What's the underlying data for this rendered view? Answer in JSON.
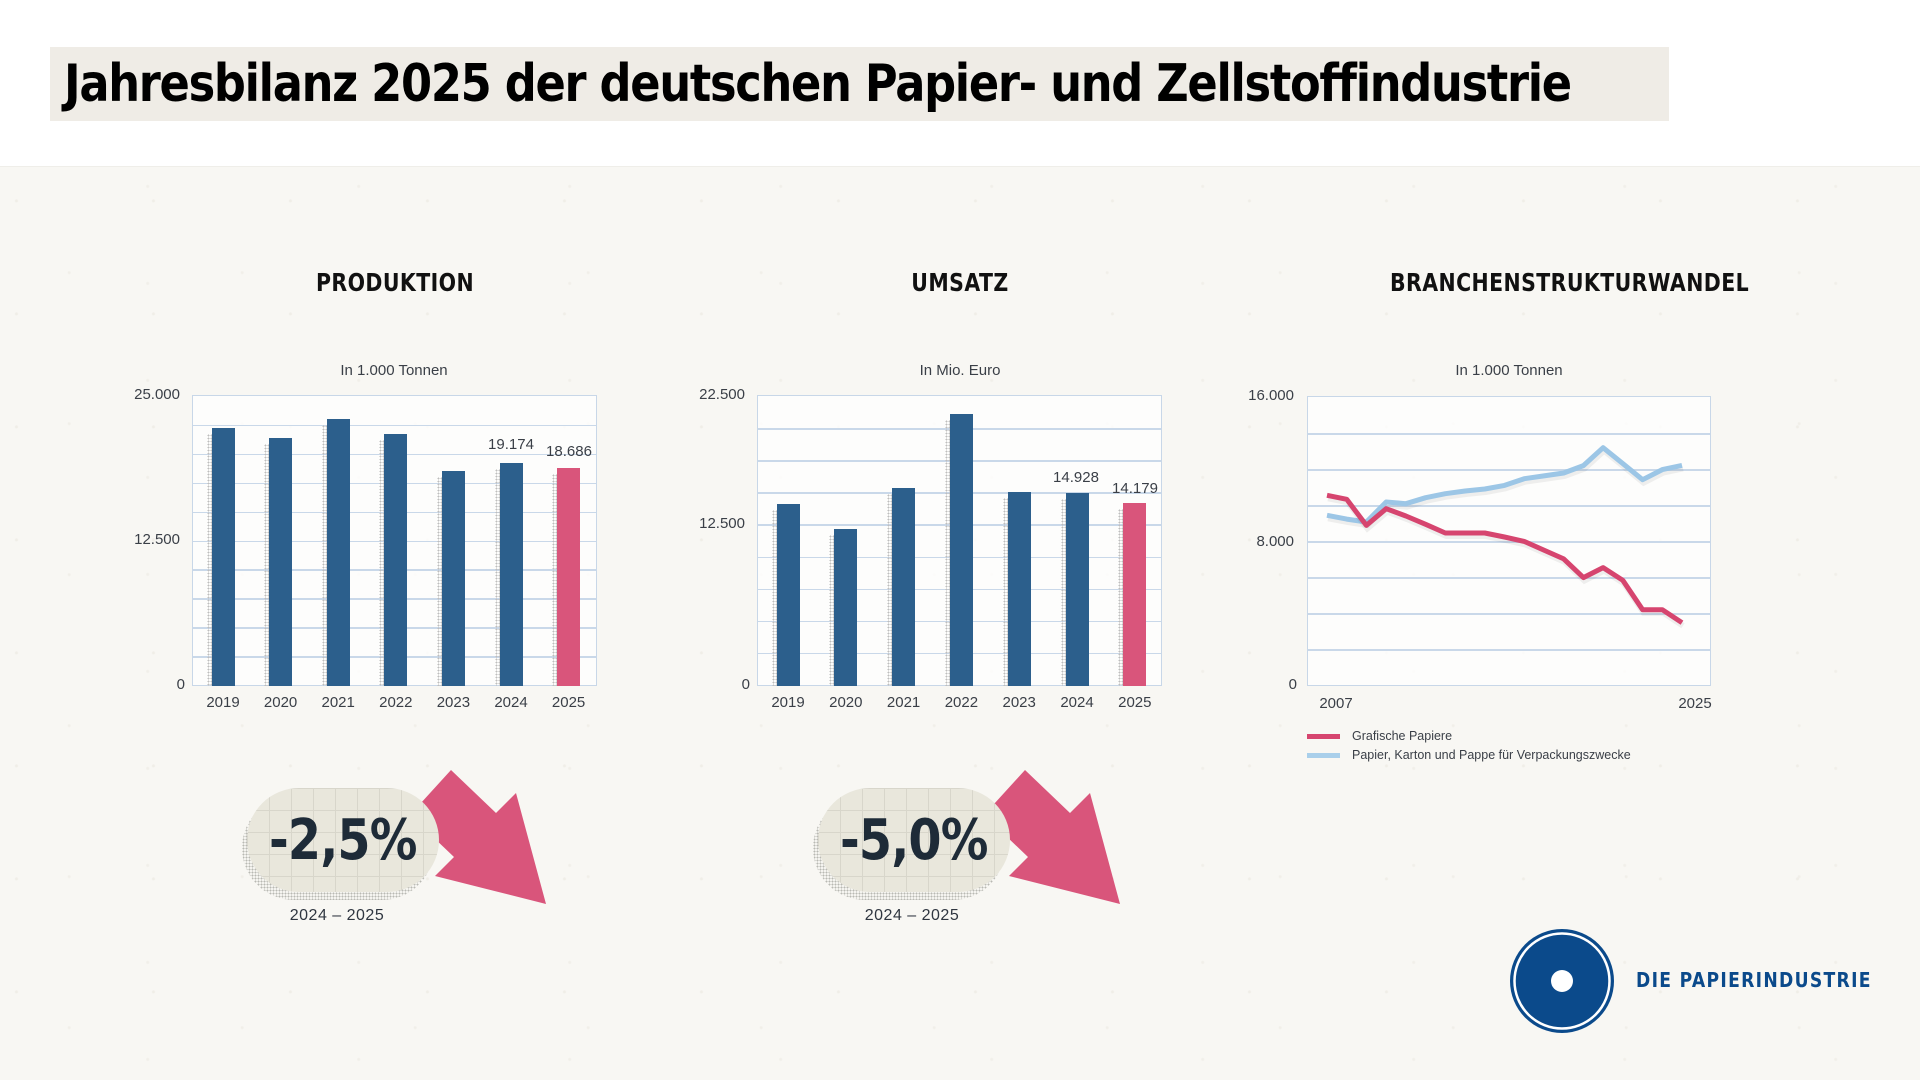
{
  "header": {
    "title": "Jahresbilanz 2025 der deutschen Papier- und Zellstoffindustrie"
  },
  "colors": {
    "bar_primary": "#2c5f8c",
    "bar_highlight": "#d9557b",
    "line_grafisch": "#d6456f",
    "line_verpackung": "#9cc6e6",
    "grid": "#c9d8e9",
    "logo_blue": "#0b4a8b",
    "title_bg": "#efece6"
  },
  "produktion": {
    "title": "PRODUKTION",
    "subtitle": "In 1.000 Tonnen",
    "y_ticks": [
      "25.000",
      "12.500",
      "0"
    ],
    "x_labels": [
      "2019",
      "2020",
      "2021",
      "2022",
      "2023",
      "2024",
      "2025"
    ],
    "data_labels": {
      "2024": "19.174",
      "2025": "18.686"
    },
    "change": {
      "value": "-2,5%",
      "period": "2024 – 2025"
    }
  },
  "umsatz": {
    "title": "UMSATZ",
    "subtitle": "In Mio. Euro",
    "y_ticks": [
      "22.500",
      "12.500",
      "0"
    ],
    "x_labels": [
      "2019",
      "2020",
      "2021",
      "2022",
      "2023",
      "2024",
      "2025"
    ],
    "data_labels": {
      "2024": "14.928",
      "2025": "14.179"
    },
    "change": {
      "value": "-5,0%",
      "period": "2024 – 2025"
    }
  },
  "strukturwandel": {
    "title": "BRANCHENSTRUKTURWANDEL",
    "subtitle": "In 1.000 Tonnen",
    "y_ticks": [
      "16.000",
      "8.000",
      "0"
    ],
    "x_labels": [
      "2007",
      "2025"
    ],
    "legend": [
      {
        "label": "Grafische Papiere",
        "color": "#d6456f"
      },
      {
        "label": "Papier, Karton und Pappe für Verpackungszwecke",
        "color": "#9cc6e6"
      }
    ]
  },
  "logo": {
    "text": "DIE PAPIERINDUSTRIE"
  },
  "chart_data": [
    {
      "type": "bar",
      "title": "PRODUKTION",
      "subtitle": "In 1.000 Tonnen",
      "categories": [
        "2019",
        "2020",
        "2021",
        "2022",
        "2023",
        "2024",
        "2025"
      ],
      "values": [
        22170,
        21300,
        22940,
        21650,
        18470,
        19174,
        18686
      ],
      "highlight": "2025",
      "data_labels": {
        "2024": 19174,
        "2025": 18686
      },
      "xlabel": "",
      "ylabel": "In 1.000 Tonnen",
      "ylim": [
        0,
        25000
      ],
      "y_ticks": [
        0,
        12500,
        25000
      ],
      "grid": true,
      "grid_step": 2500,
      "change_2024_2025": "-2,5%"
    },
    {
      "type": "bar",
      "title": "UMSATZ",
      "subtitle": "In Mio. Euro",
      "categories": [
        "2019",
        "2020",
        "2021",
        "2022",
        "2023",
        "2024",
        "2025"
      ],
      "values": [
        14070,
        12140,
        15310,
        21030,
        15000,
        14928,
        14179
      ],
      "highlight": "2025",
      "data_labels": {
        "2024": 14928,
        "2025": 14179
      },
      "xlabel": "",
      "ylabel": "In Mio. Euro",
      "ylim": [
        0,
        22500
      ],
      "y_ticks": [
        0,
        12500,
        22500
      ],
      "grid": true,
      "grid_step": 2500,
      "change_2024_2025": "-5,0%"
    },
    {
      "type": "line",
      "title": "BRANCHENSTRUKTURWANDEL",
      "subtitle": "In 1.000 Tonnen",
      "x": [
        2007,
        2008,
        2009,
        2010,
        2011,
        2012,
        2013,
        2014,
        2015,
        2016,
        2017,
        2018,
        2019,
        2020,
        2021,
        2022,
        2023,
        2024,
        2025
      ],
      "x_tick_labels": [
        "2007",
        "2025"
      ],
      "series": [
        {
          "name": "Grafische Papiere",
          "color": "#d6456f",
          "values": [
            10520,
            10300,
            8860,
            9780,
            9380,
            8920,
            8440,
            8440,
            8440,
            8220,
            7980,
            7500,
            7010,
            5980,
            6530,
            5830,
            4210,
            4210,
            3490
          ]
        },
        {
          "name": "Papier, Karton und Pappe für Verpackungszwecke",
          "color": "#9cc6e6",
          "values": [
            9420,
            9210,
            9050,
            10150,
            10060,
            10390,
            10610,
            10760,
            10870,
            11070,
            11440,
            11590,
            11750,
            12160,
            13150,
            12270,
            11380,
            11940,
            12170
          ]
        }
      ],
      "xlabel": "",
      "ylabel": "In 1.000 Tonnen",
      "ylim": [
        0,
        16000
      ],
      "y_ticks": [
        0,
        8000,
        16000
      ],
      "grid": true,
      "grid_step": 2000,
      "legend_position": "bottom-left"
    }
  ]
}
